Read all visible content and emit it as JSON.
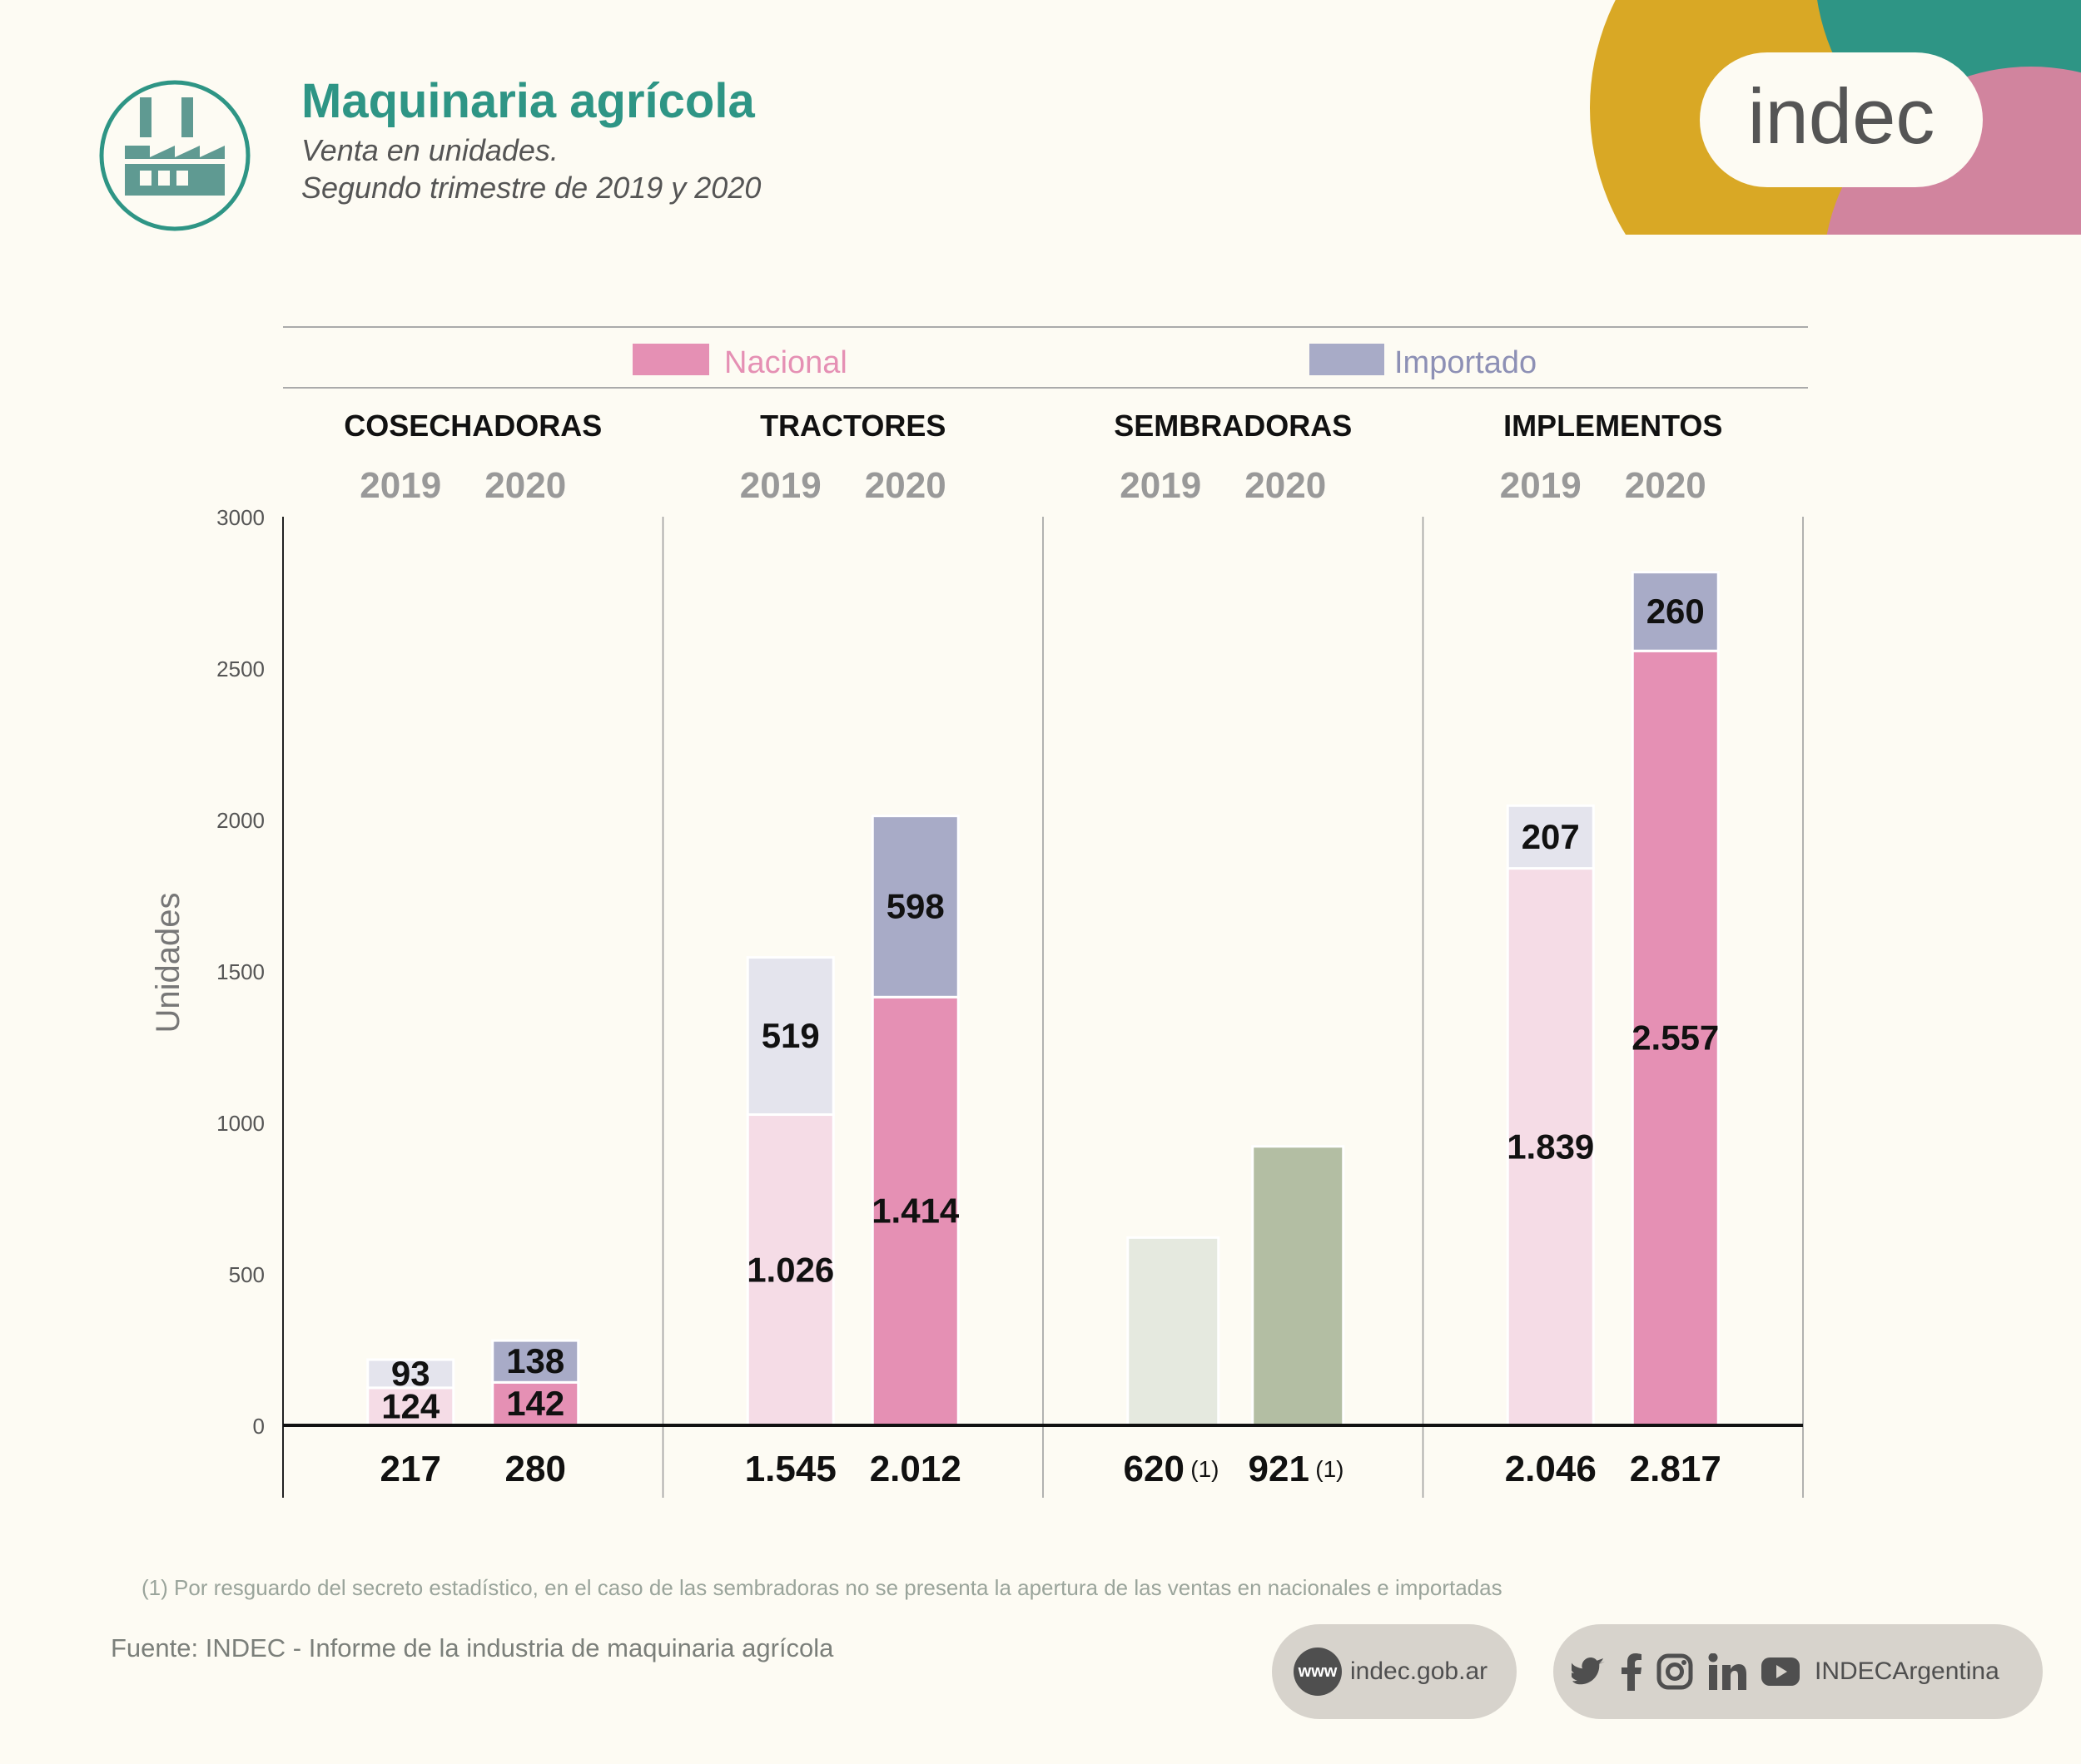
{
  "header": {
    "title": "Maquinaria agrícola",
    "subtitle_line1": "Venta en unidades.",
    "subtitle_line2": "Segundo trimestre de 2019 y 2020",
    "icon": "factory-icon"
  },
  "brand": {
    "logo_text": "indec"
  },
  "colors": {
    "accent": "#2e9585",
    "nacional": "#e590b4",
    "nacional_light": "#f5dce6",
    "importado": "#a8abc7",
    "importado_light": "#e4e4ed",
    "total_only": "#b3bea3",
    "total_only_light": "#e5e9df",
    "deco_yellow": "#d9a825",
    "deco_teal": "#2e9585",
    "deco_pink": "#d1849e"
  },
  "chart_data": {
    "type": "bar",
    "stacked": true,
    "ylabel": "Unidades",
    "ylim": [
      0,
      3000
    ],
    "yticks": [
      0,
      500,
      1000,
      1500,
      2000,
      2500,
      3000
    ],
    "legend": {
      "placement": "top",
      "nacional": "Nacional",
      "importado": "Importado"
    },
    "groups": [
      {
        "name": "COSECHADORAS",
        "bars": [
          {
            "year": "2019",
            "nacional": 124,
            "importado": 93,
            "nacional_label": "124",
            "importado_label": "93",
            "total_label": "217"
          },
          {
            "year": "2020",
            "nacional": 142,
            "importado": 138,
            "nacional_label": "142",
            "importado_label": "138",
            "total_label": "280"
          }
        ]
      },
      {
        "name": "TRACTORES",
        "bars": [
          {
            "year": "2019",
            "nacional": 1026,
            "importado": 519,
            "nacional_label": "1.026",
            "importado_label": "519",
            "total_label": "1.545"
          },
          {
            "year": "2020",
            "nacional": 1414,
            "importado": 598,
            "nacional_label": "1.414",
            "importado_label": "598",
            "total_label": "2.012"
          }
        ]
      },
      {
        "name": "SEMBRADORAS",
        "bars": [
          {
            "year": "2019",
            "total": 620,
            "total_label": "620",
            "note": "(1)"
          },
          {
            "year": "2020",
            "total": 921,
            "total_label": "921",
            "note": "(1)"
          }
        ]
      },
      {
        "name": "IMPLEMENTOS",
        "bars": [
          {
            "year": "2019",
            "nacional": 1839,
            "importado": 207,
            "nacional_label": "1.839",
            "importado_label": "207",
            "total_label": "2.046"
          },
          {
            "year": "2020",
            "nacional": 2557,
            "importado": 260,
            "nacional_label": "2.557",
            "importado_label": "260",
            "total_label": "2.817"
          }
        ]
      }
    ]
  },
  "footnote": "(1) Por resguardo del secreto estadístico, en el caso de las sembradoras no se presenta la apertura de las ventas en nacionales e importadas",
  "source": "Fuente:  INDEC - Informe de la industria de maquinaria agrícola",
  "footer": {
    "website_icon_text": "www",
    "website": "indec.gob.ar",
    "social_handle": "INDECArgentina",
    "social_icons": [
      "twitter-icon",
      "facebook-icon",
      "instagram-icon",
      "linkedin-icon",
      "youtube-icon"
    ]
  }
}
